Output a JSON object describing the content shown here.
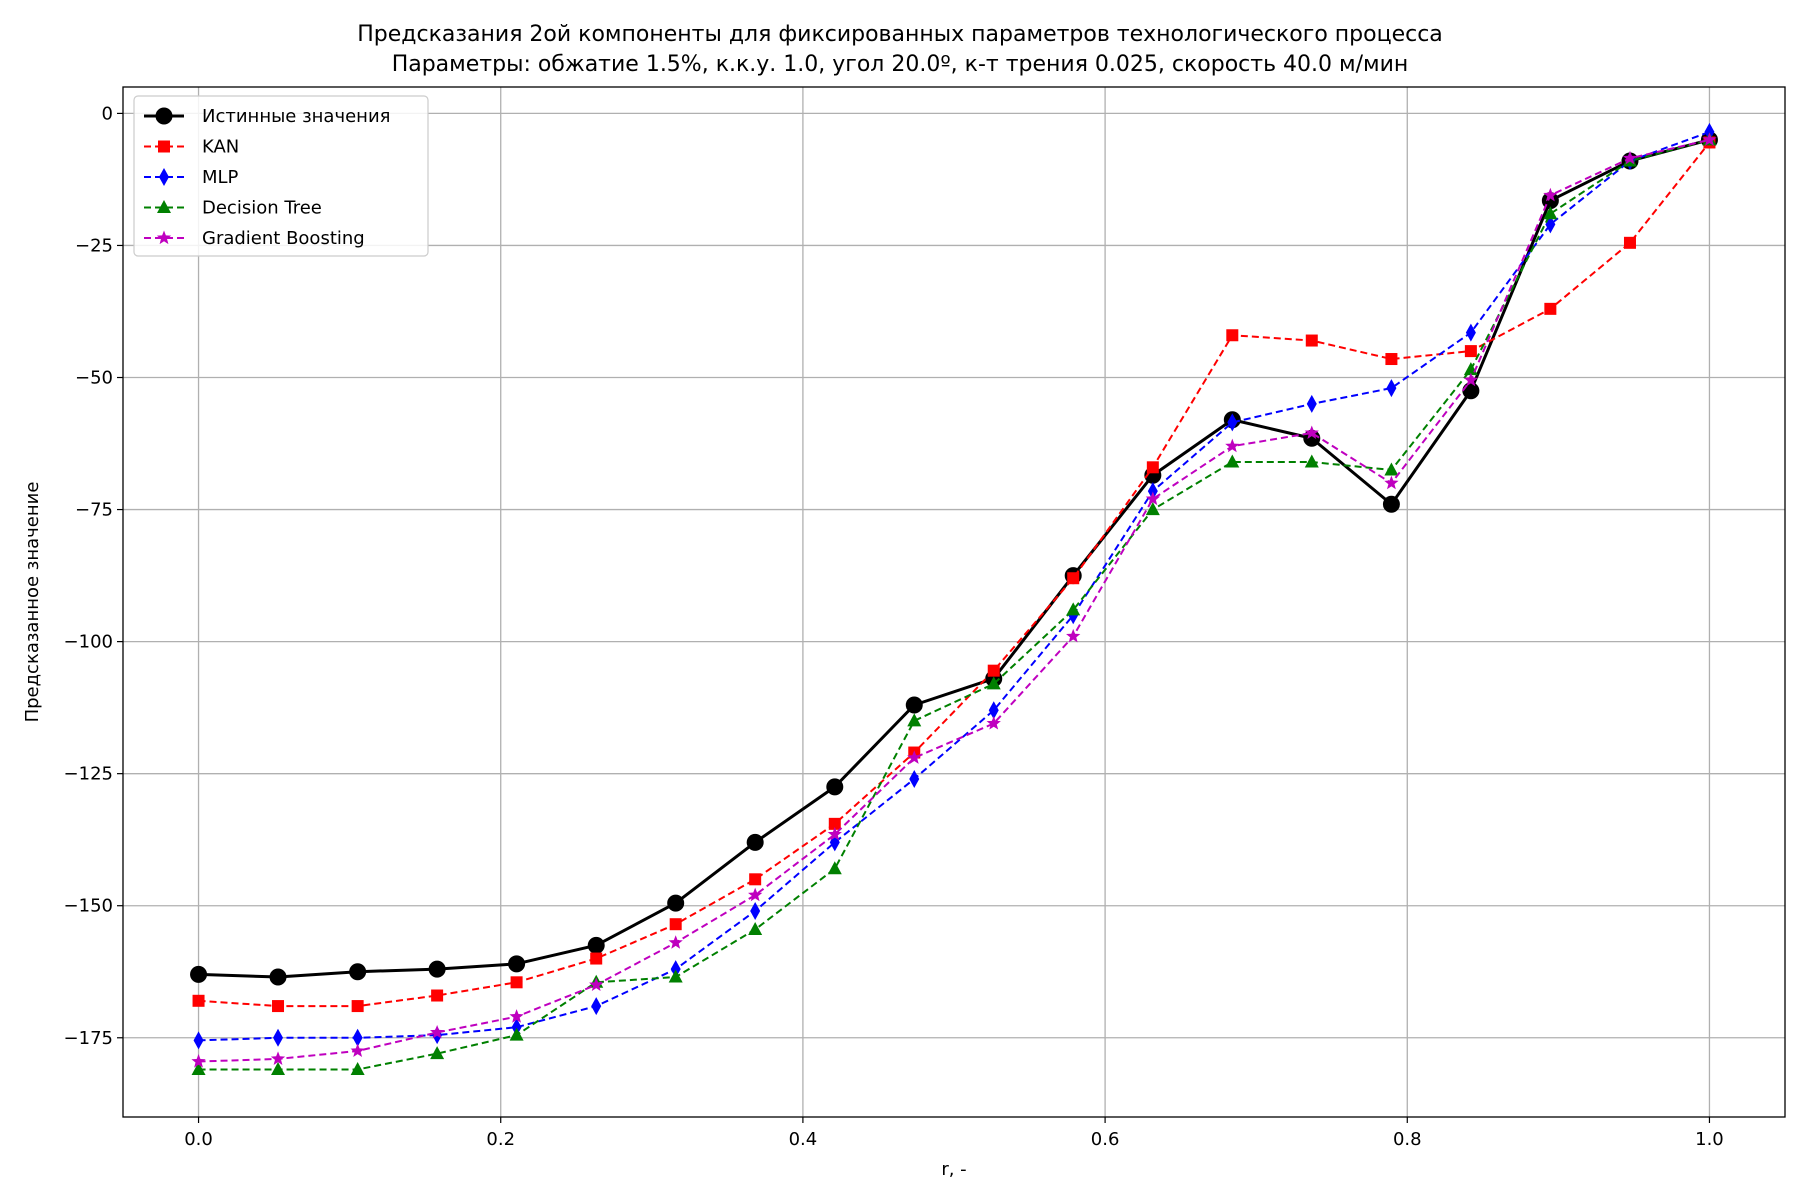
{
  "chart_data": {
    "type": "line",
    "title": "Предсказания 2ой компоненты для фиксированных параметров технологического процесса",
    "subtitle": "Параметры: обжатие 1.5%, к.к.у. 1.0, угол 20.0º, к-т трения 0.025, скорость 40.0 м/мин",
    "xlabel": "r, -",
    "ylabel": "Предсказанное значение",
    "xlim": [
      -0.05,
      1.05
    ],
    "ylim": [
      -190,
      5
    ],
    "xticks": [
      "0.0",
      "0.2",
      "0.4",
      "0.6",
      "0.8",
      "1.0"
    ],
    "yticks": [
      "0",
      "−25",
      "−50",
      "−75",
      "−100",
      "−125",
      "−150",
      "−175"
    ],
    "grid": true,
    "legend_position": "top-left",
    "x": [
      0.0,
      0.0526,
      0.1053,
      0.1579,
      0.2105,
      0.2632,
      0.3158,
      0.3684,
      0.4211,
      0.4737,
      0.5263,
      0.5789,
      0.6316,
      0.6842,
      0.7368,
      0.7895,
      0.8421,
      0.8947,
      0.9474,
      1.0
    ],
    "series": [
      {
        "name": "Истинные значения",
        "color": "#000000",
        "marker": "circle",
        "style": "solid",
        "values": [
          -163,
          -163.5,
          -162.5,
          -162,
          -161,
          -157.5,
          -149.5,
          -138,
          -127.5,
          -112,
          -107,
          -87.5,
          -68.5,
          -58,
          -61.5,
          -74,
          -52.5,
          -16.5,
          -9,
          -5
        ]
      },
      {
        "name": "KAN",
        "color": "#ff0000",
        "marker": "square",
        "style": "dashed",
        "values": [
          -168,
          -169,
          -169,
          -167,
          -164.5,
          -160,
          -153.5,
          -145,
          -134.5,
          -121,
          -105.5,
          -88,
          -67,
          -42,
          -43,
          -46.5,
          -45,
          -37,
          -24.5,
          -5.5
        ]
      },
      {
        "name": "MLP",
        "color": "#0000ff",
        "marker": "thin_diamond",
        "style": "dashed",
        "values": [
          -175.5,
          -175,
          -175,
          -174.5,
          -173,
          -169,
          -162,
          -151,
          -138,
          -126,
          -113,
          -95,
          -71.5,
          -58.5,
          -55,
          -52,
          -41.5,
          -21,
          -9,
          -3.5
        ]
      },
      {
        "name": "Decision Tree",
        "color": "#008000",
        "marker": "triangle",
        "style": "dashed",
        "values": [
          -181,
          -181,
          -181,
          -178,
          -174.5,
          -164.5,
          -163.5,
          -154.5,
          -143,
          -115,
          -108,
          -94,
          -75,
          -66,
          -66,
          -67.5,
          -48.5,
          -19,
          -9,
          -5
        ]
      },
      {
        "name": "Gradient Boosting",
        "color": "#bf00bf",
        "marker": "star",
        "style": "dashed",
        "values": [
          -179.5,
          -179,
          -177.5,
          -174,
          -171,
          -165,
          -157,
          -148,
          -136.5,
          -122,
          -115.5,
          -99,
          -73,
          -63,
          -60.5,
          -70,
          -50.5,
          -15.5,
          -8.5,
          -5
        ]
      }
    ]
  }
}
